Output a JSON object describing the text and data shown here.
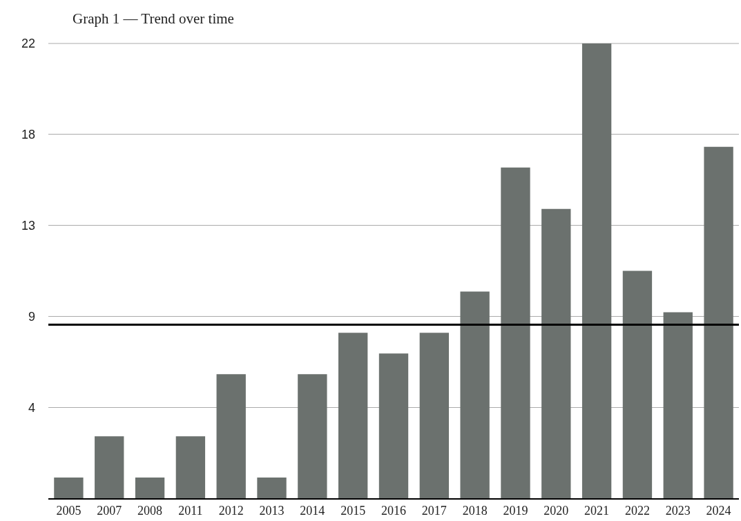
{
  "chart_data": {
    "type": "bar",
    "title": "Graph 1 — Trend over time",
    "categories": [
      "2005",
      "2007",
      "2008",
      "2011",
      "2012",
      "2013",
      "2014",
      "2015",
      "2016",
      "2017",
      "2018",
      "2019",
      "2020",
      "2021",
      "2022",
      "2023",
      "2024"
    ],
    "values": [
      1,
      3,
      1,
      3,
      6,
      1,
      6,
      8,
      7,
      8,
      10,
      16,
      14,
      22,
      11,
      9,
      17
    ],
    "color": "#6b716e",
    "ylim": [
      0,
      22
    ],
    "yticks": [
      {
        "value": 4.4,
        "label": "4"
      },
      {
        "value": 8.8,
        "label": "9"
      },
      {
        "value": 13.2,
        "label": "13"
      },
      {
        "value": 17.6,
        "label": "18"
      },
      {
        "value": 22,
        "label": "22"
      }
    ],
    "grid": "y",
    "ref_lines": [
      {
        "axis": "y",
        "value": 8.4,
        "color": "#000000"
      }
    ]
  }
}
